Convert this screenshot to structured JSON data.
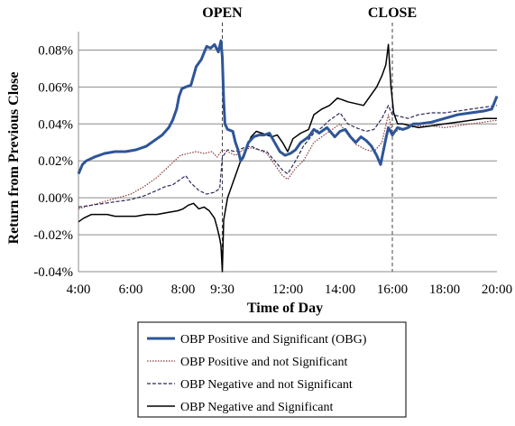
{
  "chart_data": {
    "type": "line",
    "xlabel": "Time of Day",
    "ylabel": "Return from Previous Close",
    "x_ticks": [
      "4:00",
      "6:00",
      "8:00",
      "9:30",
      "12:00",
      "14:00",
      "16:00",
      "18:00",
      "20:00"
    ],
    "x_tick_hours": [
      4,
      6,
      8,
      9.5,
      12,
      14,
      16,
      18,
      20
    ],
    "xlim": [
      "4:00",
      "20:00"
    ],
    "y_ticks": [
      "-0.04%",
      "-0.02%",
      "0.00%",
      "0.02%",
      "0.04%",
      "0.06%",
      "0.08%"
    ],
    "y_tick_values": [
      -0.04,
      -0.02,
      0.0,
      0.02,
      0.04,
      0.06,
      0.08
    ],
    "ylim": [
      -0.04,
      0.09
    ],
    "grid": "horizontal",
    "event_lines": [
      {
        "label": "OPEN",
        "time": "9:30"
      },
      {
        "label": "CLOSE",
        "time": "16:00"
      }
    ],
    "legend_position": "bottom",
    "series": [
      {
        "name": "OBP Positive and Significant (OBG)",
        "color": "#2e5597",
        "style": "thick",
        "x": [
          4.0,
          4.15,
          4.3,
          4.6,
          5.0,
          5.4,
          5.8,
          6.2,
          6.6,
          7.0,
          7.2,
          7.45,
          7.6,
          7.75,
          7.85,
          7.95,
          8.1,
          8.3,
          8.5,
          8.7,
          8.9,
          9.05,
          9.2,
          9.35,
          9.45,
          9.5,
          9.55,
          9.6,
          9.7,
          9.9,
          10.0,
          10.1,
          10.2,
          10.3,
          10.5,
          10.7,
          10.9,
          11.1,
          11.3,
          11.5,
          11.7,
          11.9,
          12.1,
          12.3,
          12.5,
          12.8,
          13.0,
          13.2,
          13.5,
          13.8,
          14.0,
          14.2,
          14.4,
          14.6,
          14.8,
          15.0,
          15.2,
          15.4,
          15.55,
          15.65,
          15.75,
          15.85,
          16.0,
          16.1,
          16.2,
          16.4,
          16.6,
          16.8,
          17.0,
          17.5,
          18.0,
          18.5,
          19.0,
          19.5,
          19.8,
          20.0
        ],
        "y": [
          0.013,
          0.018,
          0.02,
          0.022,
          0.024,
          0.025,
          0.025,
          0.026,
          0.028,
          0.032,
          0.034,
          0.038,
          0.042,
          0.048,
          0.055,
          0.059,
          0.06,
          0.061,
          0.071,
          0.075,
          0.082,
          0.081,
          0.083,
          0.079,
          0.085,
          0.076,
          0.053,
          0.04,
          0.037,
          0.036,
          0.03,
          0.026,
          0.02,
          0.022,
          0.03,
          0.033,
          0.034,
          0.034,
          0.035,
          0.03,
          0.025,
          0.023,
          0.024,
          0.026,
          0.03,
          0.033,
          0.037,
          0.035,
          0.038,
          0.033,
          0.036,
          0.037,
          0.033,
          0.03,
          0.033,
          0.031,
          0.028,
          0.023,
          0.018,
          0.025,
          0.032,
          0.038,
          0.034,
          0.036,
          0.038,
          0.037,
          0.038,
          0.04,
          0.04,
          0.041,
          0.043,
          0.045,
          0.046,
          0.047,
          0.048,
          0.055
        ]
      },
      {
        "name": "OBP Positive and not Significant",
        "color": "#8b3a3a",
        "style": "dotted",
        "x": [
          4.0,
          4.5,
          5.0,
          5.5,
          6.0,
          6.5,
          7.0,
          7.3,
          7.6,
          7.9,
          8.2,
          8.5,
          8.8,
          9.1,
          9.3,
          9.5,
          9.7,
          10.0,
          10.3,
          10.6,
          10.9,
          11.2,
          11.5,
          11.8,
          12.0,
          12.3,
          12.6,
          13.0,
          13.3,
          13.6,
          14.0,
          14.3,
          14.6,
          15.0,
          15.3,
          15.6,
          15.85,
          16.0,
          16.3,
          16.6,
          17.0,
          17.5,
          18.0,
          18.5,
          19.0,
          19.5,
          20.0
        ],
        "y": [
          -0.006,
          -0.004,
          -0.002,
          0.0,
          0.002,
          0.006,
          0.011,
          0.015,
          0.019,
          0.023,
          0.024,
          0.025,
          0.024,
          0.025,
          0.022,
          0.026,
          0.025,
          0.023,
          0.026,
          0.027,
          0.026,
          0.024,
          0.018,
          0.012,
          0.01,
          0.016,
          0.02,
          0.03,
          0.033,
          0.036,
          0.04,
          0.034,
          0.029,
          0.026,
          0.025,
          0.03,
          0.045,
          0.035,
          0.037,
          0.038,
          0.039,
          0.039,
          0.038,
          0.039,
          0.04,
          0.041,
          0.042
        ]
      },
      {
        "name": "OBP Negative and not Significant",
        "color": "#2b2b5a",
        "style": "dashed",
        "x": [
          4.0,
          4.5,
          5.0,
          5.5,
          6.0,
          6.5,
          7.0,
          7.3,
          7.6,
          7.9,
          8.1,
          8.3,
          8.6,
          8.9,
          9.2,
          9.4,
          9.5,
          9.7,
          10.0,
          10.3,
          10.6,
          10.9,
          11.2,
          11.5,
          11.8,
          12.0,
          12.3,
          12.6,
          13.0,
          13.3,
          13.6,
          14.0,
          14.3,
          14.6,
          15.0,
          15.3,
          15.6,
          15.85,
          16.0,
          16.3,
          16.6,
          17.0,
          17.5,
          18.0,
          18.5,
          19.0,
          19.5,
          20.0
        ],
        "y": [
          -0.005,
          -0.004,
          -0.003,
          -0.002,
          -0.001,
          0.001,
          0.004,
          0.006,
          0.007,
          0.01,
          0.012,
          0.008,
          0.004,
          0.002,
          0.003,
          0.005,
          0.022,
          0.026,
          0.025,
          0.027,
          0.028,
          0.026,
          0.025,
          0.02,
          0.015,
          0.013,
          0.02,
          0.028,
          0.035,
          0.038,
          0.042,
          0.046,
          0.04,
          0.038,
          0.036,
          0.037,
          0.043,
          0.05,
          0.045,
          0.044,
          0.043,
          0.045,
          0.046,
          0.046,
          0.047,
          0.048,
          0.049,
          0.05
        ]
      },
      {
        "name": "OBP Negative and Significant",
        "color": "#000000",
        "style": "solid",
        "x": [
          4.0,
          4.2,
          4.5,
          4.8,
          5.1,
          5.4,
          5.8,
          6.2,
          6.6,
          7.0,
          7.4,
          7.8,
          8.0,
          8.2,
          8.4,
          8.6,
          8.8,
          9.0,
          9.2,
          9.3,
          9.4,
          9.45,
          9.5,
          9.55,
          9.7,
          9.9,
          10.0,
          10.2,
          10.4,
          10.6,
          10.8,
          11.0,
          11.2,
          11.4,
          11.6,
          11.8,
          12.0,
          12.2,
          12.5,
          12.8,
          13.0,
          13.3,
          13.6,
          13.9,
          14.1,
          14.3,
          14.6,
          14.9,
          15.2,
          15.4,
          15.6,
          15.75,
          15.85,
          15.95,
          16.05,
          16.2,
          16.4,
          16.7,
          17.0,
          17.5,
          18.0,
          18.5,
          19.0,
          19.5,
          20.0
        ],
        "y": [
          -0.013,
          -0.011,
          -0.009,
          -0.009,
          -0.009,
          -0.01,
          -0.01,
          -0.01,
          -0.009,
          -0.009,
          -0.008,
          -0.007,
          -0.006,
          -0.004,
          -0.003,
          -0.006,
          -0.005,
          -0.007,
          -0.011,
          -0.016,
          -0.022,
          -0.026,
          -0.04,
          -0.012,
          0.0,
          0.008,
          0.012,
          0.02,
          0.026,
          0.033,
          0.036,
          0.035,
          0.034,
          0.033,
          0.034,
          0.03,
          0.025,
          0.032,
          0.035,
          0.037,
          0.045,
          0.048,
          0.05,
          0.054,
          0.053,
          0.052,
          0.051,
          0.05,
          0.056,
          0.06,
          0.066,
          0.072,
          0.083,
          0.06,
          0.046,
          0.04,
          0.04,
          0.039,
          0.038,
          0.039,
          0.04,
          0.041,
          0.042,
          0.043,
          0.043
        ]
      }
    ]
  }
}
